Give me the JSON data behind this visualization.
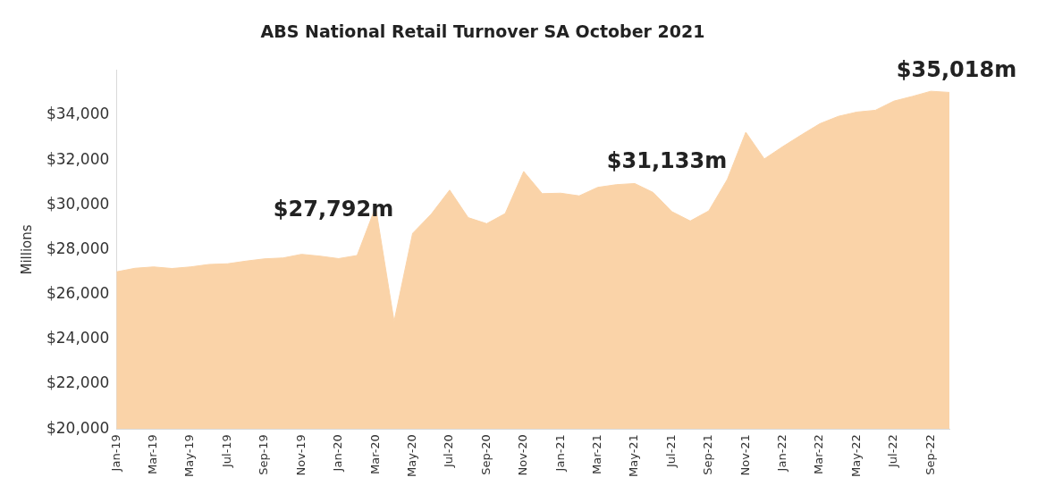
{
  "chart_data": {
    "type": "area",
    "title": "ABS National Retail Turnover SA October 2021",
    "ylabel": "Millions",
    "categories": [
      "Jan-19",
      null,
      "Mar-19",
      null,
      "May-19",
      null,
      "Jul-19",
      null,
      "Sep-19",
      null,
      "Nov-19",
      null,
      "Jan-20",
      null,
      "Mar-20",
      null,
      "May-20",
      null,
      "Jul-20",
      null,
      "Sep-20",
      null,
      "Nov-20",
      null,
      "Jan-21",
      null,
      "Mar-21",
      null,
      "May-21",
      null,
      "Jul-21",
      null,
      "Sep-21",
      null,
      "Nov-21",
      null,
      "Jan-22",
      null,
      "Mar-22",
      null,
      "May-22",
      null,
      "Jul-22",
      null,
      "Sep-22",
      null
    ],
    "series": [
      {
        "color": "#fad3a8",
        "values": [
          27010,
          27170,
          27230,
          27160,
          27230,
          27340,
          27370,
          27490,
          27590,
          27630,
          27792,
          27710,
          27600,
          27740,
          29910,
          24800,
          28730,
          29580,
          30660,
          29430,
          29160,
          29610,
          31490,
          30500,
          30520,
          30400,
          30780,
          30900,
          30950,
          30550,
          29700,
          29280,
          29730,
          31133,
          33240,
          32050,
          32600,
          33120,
          33620,
          33950,
          34140,
          34220,
          34630,
          34840,
          35070,
          35018
        ]
      }
    ],
    "ylim": [
      20000,
      36000
    ],
    "yticks": [
      {
        "value": 20000,
        "label": "$20,000"
      },
      {
        "value": 22000,
        "label": "$22,000"
      },
      {
        "value": 24000,
        "label": "$24,000"
      },
      {
        "value": 26000,
        "label": "$26,000"
      },
      {
        "value": 28000,
        "label": "$28,000"
      },
      {
        "value": 30000,
        "label": "$30,000"
      },
      {
        "value": 32000,
        "label": "$32,000"
      },
      {
        "value": 34000,
        "label": "$34,000"
      }
    ],
    "annotations": [
      "$27,792m",
      "$31,133m",
      "$35,018m"
    ],
    "grid": false,
    "legend": false
  }
}
